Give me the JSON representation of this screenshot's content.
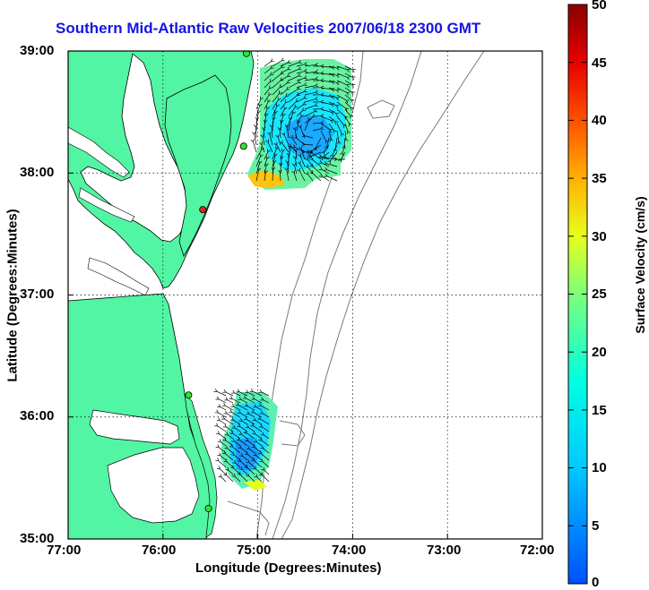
{
  "title": "Southern Mid-Atlantic Raw Velocities 2007/06/18 2300 GMT",
  "xlabel": "Longitude (Degrees:Minutes)",
  "ylabel": "Latitude (Degrees:Minutes)",
  "colorbar_label": "Surface Velocity (cm/s)",
  "x_ticks": [
    "77:00",
    "76:00",
    "75:00",
    "74:00",
    "73:00",
    "72:00"
  ],
  "y_ticks": [
    "39:00",
    "38:00",
    "37:00",
    "36:00",
    "35:00"
  ],
  "colorbar_ticks": [
    "0",
    "5",
    "10",
    "15",
    "20",
    "25",
    "30",
    "35",
    "40",
    "45",
    "50"
  ],
  "colors": {
    "land": "#52f5a3",
    "ocean": "#ffffff",
    "title": "#1414e6",
    "isobath": "#7a7a7a",
    "station_green": "#2ee62e",
    "station_red": "#e62020"
  },
  "chart_data": {
    "type": "map-vector-field",
    "xlim": [
      -77,
      -72
    ],
    "ylim": [
      35,
      39
    ],
    "color_scale": {
      "label": "Surface Velocity (cm/s)",
      "range": [
        0,
        50
      ],
      "colormap": "jet"
    },
    "grid": true,
    "stations": [
      {
        "lon": -75.12,
        "lat": 38.98,
        "color": "green"
      },
      {
        "lon": -75.15,
        "lat": 38.22,
        "color": "green"
      },
      {
        "lon": -75.58,
        "lat": 37.7,
        "color": "red"
      },
      {
        "lon": -75.73,
        "lat": 36.18,
        "color": "green"
      },
      {
        "lon": -75.52,
        "lat": 35.25,
        "color": "green"
      }
    ]
  }
}
